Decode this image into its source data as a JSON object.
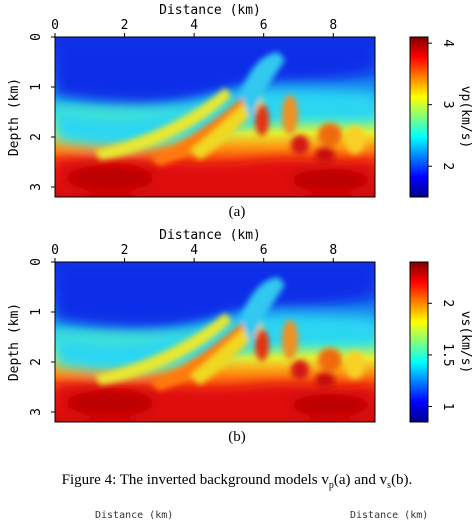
{
  "figure": {
    "caption_prefix": "Figure 4: The inverted background models v",
    "caption_sub1": "p",
    "caption_mid": "(a) and v",
    "caption_sub2": "s",
    "caption_suffix": "(b).",
    "next_figure_titles": [
      "Distance (km)",
      "Distance (km)"
    ]
  },
  "chart_data": [
    {
      "type": "heatmap",
      "panel_label": "(a)",
      "xlabel": "Distance (km)",
      "ylabel": "Depth (km)",
      "xlim": [
        0,
        9.2
      ],
      "ylim": [
        3.2,
        0
      ],
      "x_ticks": [
        0,
        2,
        4,
        6,
        8
      ],
      "y_ticks": [
        0,
        1,
        2,
        3
      ],
      "colorbar": {
        "label": "vp(km/s)",
        "range": [
          1.5,
          4.1
        ],
        "ticks": [
          2,
          3,
          4
        ],
        "colormap": "jet"
      }
    },
    {
      "type": "heatmap",
      "panel_label": "(b)",
      "xlabel": "Distance (km)",
      "ylabel": "Depth (km)",
      "xlim": [
        0,
        9.2
      ],
      "ylim": [
        3.2,
        0
      ],
      "x_ticks": [
        0,
        2,
        4,
        6,
        8
      ],
      "y_ticks": [
        0,
        1,
        2,
        3
      ],
      "colorbar": {
        "label": "vs(km/s)",
        "range": [
          0.85,
          2.4
        ],
        "ticks": [
          1,
          1.5,
          2
        ],
        "colormap": "jet"
      }
    }
  ]
}
